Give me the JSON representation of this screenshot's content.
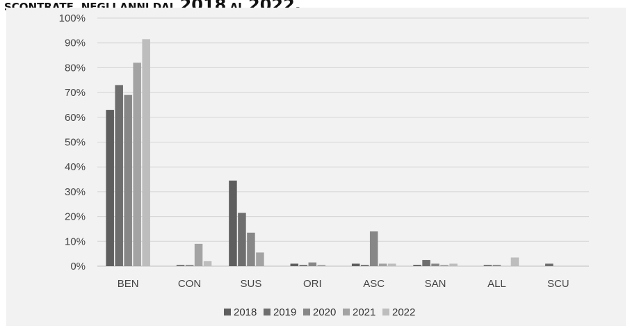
{
  "header": {
    "title_prefix": "SCONTRATE, NEGLI ANNI DAL ",
    "year_from": "2018",
    "title_mid": " AL ",
    "year_to": "2022."
  },
  "chart_data": {
    "type": "bar",
    "categories": [
      "BEN",
      "CON",
      "SUS",
      "ORI",
      "ASC",
      "SAN",
      "ALL",
      "SCU"
    ],
    "series": [
      {
        "name": "2018",
        "color": "#5e5e5e",
        "values": [
          0.63,
          0.0,
          0.345,
          0.01,
          0.01,
          0.005,
          0.0,
          0.0
        ]
      },
      {
        "name": "2019",
        "color": "#6e6e6e",
        "values": [
          0.73,
          0.005,
          0.215,
          0.005,
          0.005,
          0.025,
          0.005,
          0.01
        ]
      },
      {
        "name": "2020",
        "color": "#878787",
        "values": [
          0.69,
          0.005,
          0.135,
          0.015,
          0.14,
          0.01,
          0.005,
          0.0
        ]
      },
      {
        "name": "2021",
        "color": "#a3a3a3",
        "values": [
          0.82,
          0.09,
          0.055,
          0.005,
          0.01,
          0.005,
          0.0,
          0.0
        ]
      },
      {
        "name": "2022",
        "color": "#bdbdbd",
        "values": [
          0.915,
          0.02,
          0.0,
          0.0,
          0.01,
          0.01,
          0.035,
          0.0
        ]
      }
    ],
    "yticks": [
      "0%",
      "10%",
      "20%",
      "30%",
      "40%",
      "50%",
      "60%",
      "70%",
      "80%",
      "90%",
      "100%"
    ],
    "ylim": [
      0,
      1
    ],
    "grid": true,
    "legend": "bottom"
  }
}
